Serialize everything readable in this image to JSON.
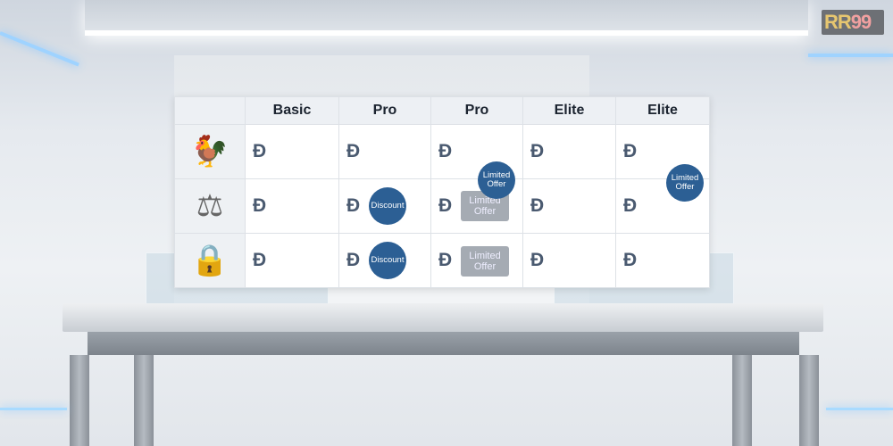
{
  "logo": {
    "text": "RR99"
  },
  "table": {
    "columns": [
      "Basic",
      "Pro",
      "Pro",
      "Elite",
      "Elite"
    ],
    "rows": [
      {
        "icon": "rooster-icon",
        "cells": [
          "Đ",
          "Đ",
          "Đ",
          "Đ",
          "Đ"
        ]
      },
      {
        "icon": "scales-icon",
        "cells": [
          "Đ",
          "Đ",
          "Đ",
          "Đ",
          "Đ"
        ]
      },
      {
        "icon": "safe-icon",
        "cells": [
          "Đ",
          "Đ",
          "Đ",
          "Đ",
          "Đ"
        ]
      }
    ],
    "badges": {
      "discount": "Discount",
      "limited": "Limited Offer"
    }
  },
  "colors": {
    "badge": "#2c5f94",
    "muted_badge": "#a5abb3"
  }
}
